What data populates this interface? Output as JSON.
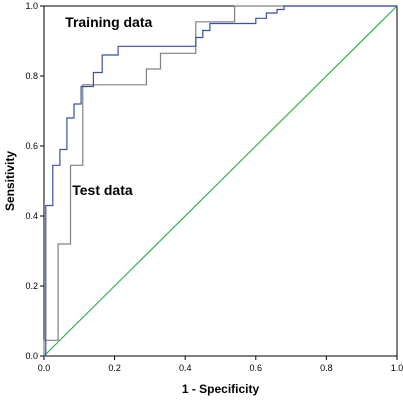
{
  "chart_data": {
    "type": "line",
    "title": "",
    "xlabel": "1 - Specificity",
    "ylabel": "Sensitivity",
    "xlim": [
      0,
      1
    ],
    "ylim": [
      0,
      1
    ],
    "grid": false,
    "x_ticks": [
      "0.0",
      "0.2",
      "0.4",
      "0.6",
      "0.8",
      "1.0"
    ],
    "y_ticks": [
      "0.0",
      "0.2",
      "0.4",
      "0.6",
      "0.8",
      "1.0"
    ],
    "annotations": [
      {
        "text": "Training data",
        "x": 0.06,
        "y": 0.94
      },
      {
        "text": "Test data",
        "x": 0.08,
        "y": 0.46
      }
    ],
    "series": [
      {
        "color": "#3a4fa8",
        "x": [
          0,
          0.005,
          0.005,
          0.025,
          0.025,
          0.045,
          0.045,
          0.065,
          0.065,
          0.085,
          0.085,
          0.105,
          0.105,
          0.14,
          0.14,
          0.165,
          0.165,
          0.21,
          0.21,
          0.43,
          0.43,
          0.45,
          0.45,
          0.47,
          0.47,
          0.53,
          0.53,
          0.6,
          0.6,
          0.63,
          0.63,
          0.66,
          0.66,
          0.68,
          0.68,
          1.0
        ],
        "y": [
          0,
          0,
          0.43,
          0.43,
          0.545,
          0.545,
          0.59,
          0.59,
          0.68,
          0.68,
          0.72,
          0.72,
          0.77,
          0.77,
          0.81,
          0.81,
          0.86,
          0.86,
          0.885,
          0.885,
          0.91,
          0.91,
          0.93,
          0.93,
          0.95,
          0.95,
          0.95,
          0.95,
          0.965,
          0.965,
          0.98,
          0.98,
          0.99,
          0.99,
          1.0,
          1.0
        ]
      },
      {
        "color": "#808080",
        "x": [
          0,
          0,
          0.04,
          0.04,
          0.075,
          0.075,
          0.11,
          0.11,
          0.29,
          0.29,
          0.33,
          0.33,
          0.43,
          0.43,
          0.54,
          0.54,
          1.0
        ],
        "y": [
          0,
          0.045,
          0.045,
          0.32,
          0.32,
          0.545,
          0.545,
          0.775,
          0.775,
          0.82,
          0.82,
          0.865,
          0.865,
          0.955,
          0.955,
          1.0,
          1.0
        ]
      },
      {
        "color": "#2fb34a",
        "x": [
          0,
          1
        ],
        "y": [
          0,
          1
        ]
      }
    ]
  }
}
